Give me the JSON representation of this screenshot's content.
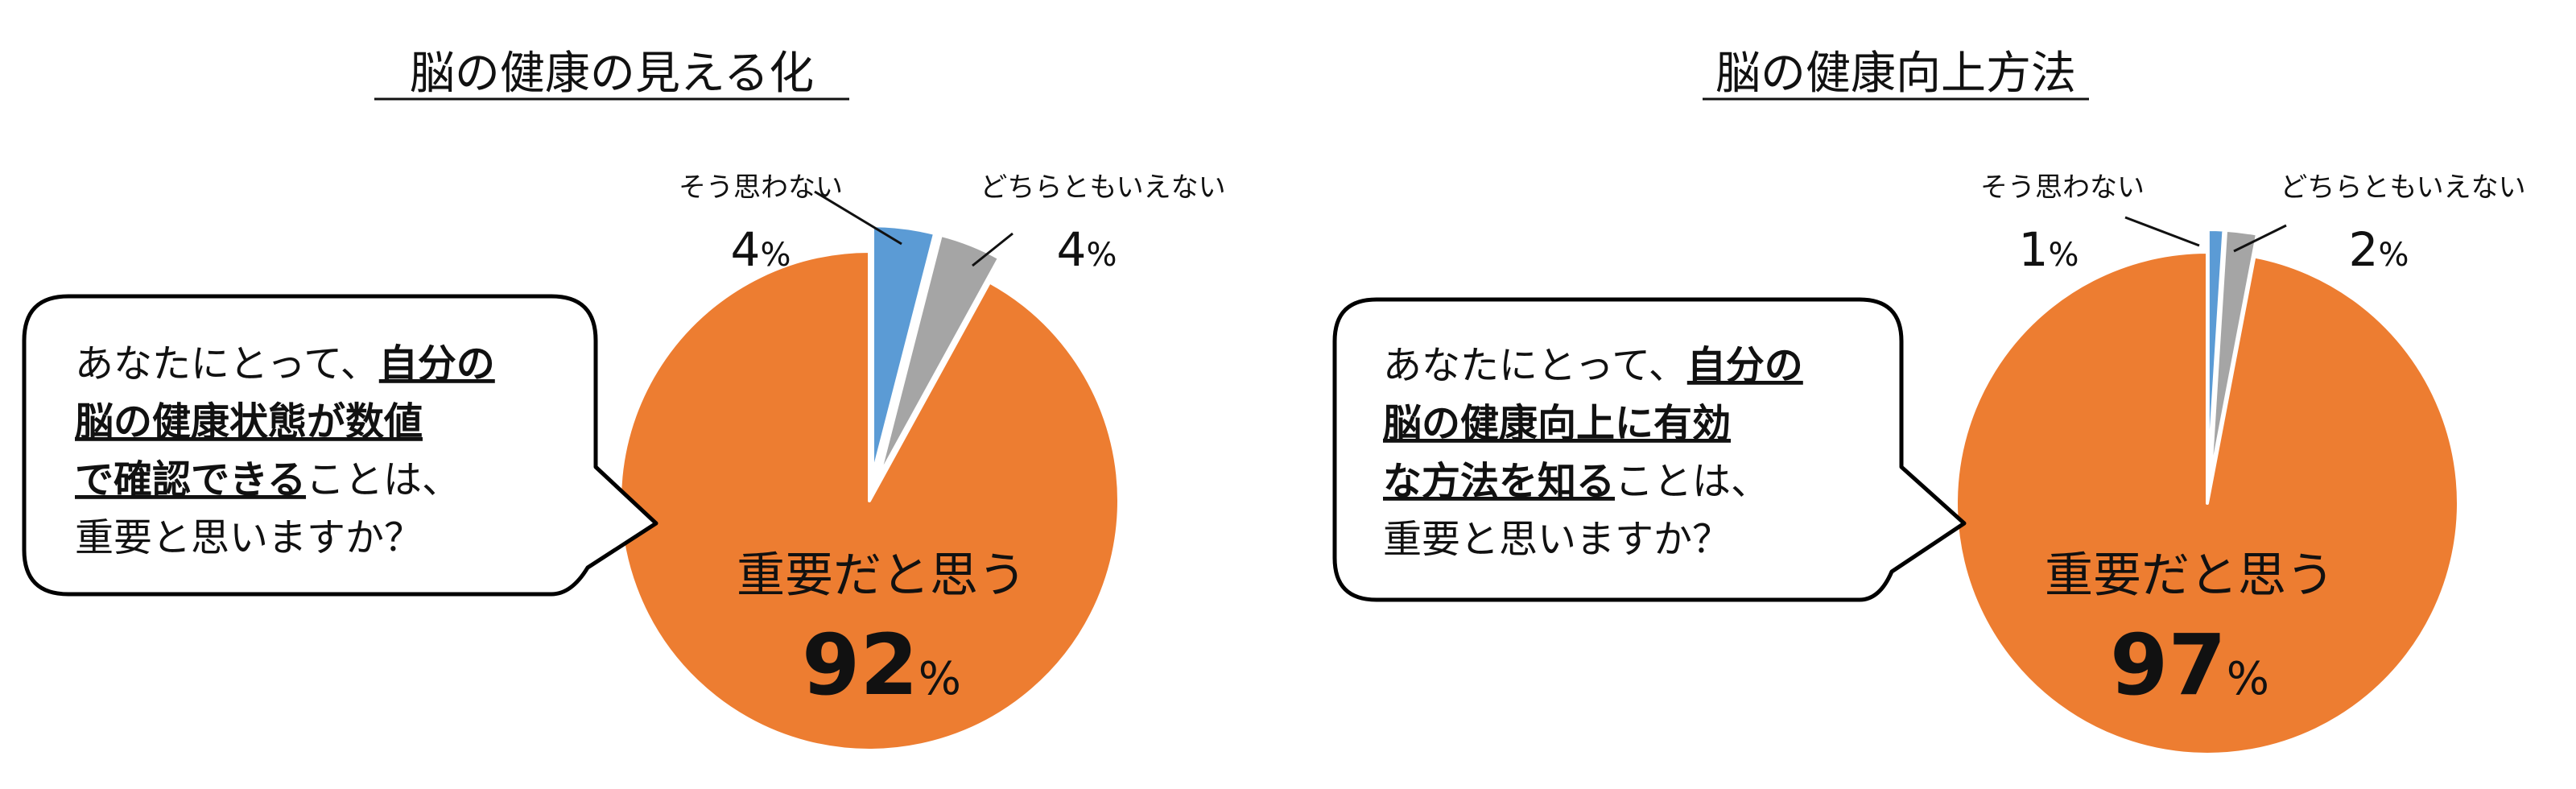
{
  "colors": {
    "important": "#ED7D31",
    "not_sure": "#A5A5A5",
    "not_important": "#5B9BD5",
    "bubble_stroke": "#000000"
  },
  "chart_data": [
    {
      "type": "pie",
      "title": "脳の健康の見える化",
      "question": {
        "plain_1": "あなたにとって、",
        "bold_1": "自分の",
        "bold_2": "脳の健康状態が数値",
        "bold_3": "で確認できる",
        "plain_3": "ことは、",
        "plain_4": "重要と思いますか？"
      },
      "slices": [
        {
          "label": "重要だと思う",
          "value": 92,
          "value_label": "92",
          "color": "#ED7D31",
          "exploded": false
        },
        {
          "label": "そう思わない",
          "value": 4,
          "value_label": "4",
          "color": "#5B9BD5",
          "exploded": true
        },
        {
          "label": "どちらともいえない",
          "value": 4,
          "value_label": "4",
          "color": "#A5A5A5",
          "exploded": true
        }
      ],
      "unit": "%"
    },
    {
      "type": "pie",
      "title": "脳の健康向上方法",
      "question": {
        "plain_1": "あなたにとって、",
        "bold_1": "自分の",
        "bold_2": "脳の健康向上に有効",
        "bold_3": "な方法を知る",
        "plain_3": "ことは、",
        "plain_4": "重要と思いますか？"
      },
      "slices": [
        {
          "label": "重要だと思う",
          "value": 97,
          "value_label": "97",
          "color": "#ED7D31",
          "exploded": false
        },
        {
          "label": "そう思わない",
          "value": 1,
          "value_label": "1",
          "color": "#5B9BD5",
          "exploded": true
        },
        {
          "label": "どちらともいえない",
          "value": 2,
          "value_label": "2",
          "color": "#A5A5A5",
          "exploded": true
        }
      ],
      "unit": "%"
    }
  ]
}
